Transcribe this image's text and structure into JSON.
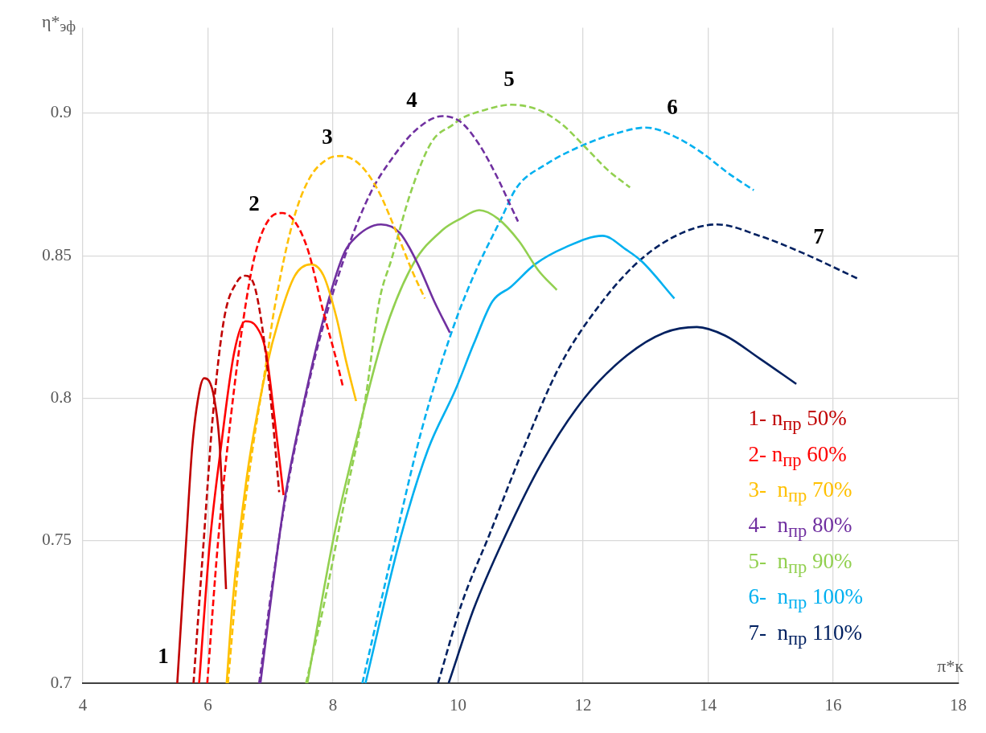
{
  "chart_data": {
    "type": "line",
    "ylabel": "η*$_{эф}$",
    "xlabel": "π*к",
    "xlim": [
      4,
      18
    ],
    "xticks": [
      4,
      6,
      8,
      10,
      12,
      14,
      16,
      18
    ],
    "ylim": [
      0.7,
      0.93
    ],
    "yticks": [
      0.7,
      0.75,
      0.8,
      0.85,
      0.9
    ],
    "grid": true,
    "legend": "bottom right",
    "series": [
      {
        "name": "1- n$_{пр}$ 50%",
        "color": "#c00000",
        "line_style": "solid",
        "x": [
          5.51,
          5.65,
          5.75,
          5.86,
          5.94,
          6.02,
          6.1,
          6.19,
          6.29
        ],
        "values": [
          0.7,
          0.749,
          0.783,
          0.802,
          0.807,
          0.806,
          0.8,
          0.783,
          0.733
        ]
      },
      {
        "color": "#c00000",
        "line_style": "dashed",
        "x": [
          5.77,
          5.93,
          6.08,
          6.26,
          6.47,
          6.6,
          6.75,
          6.9,
          7.03,
          7.14
        ],
        "values": [
          0.7,
          0.749,
          0.794,
          0.828,
          0.841,
          0.843,
          0.839,
          0.82,
          0.794,
          0.767
        ]
      },
      {
        "name": "2- n$_{пр}$ 60%",
        "color": "#ff0000",
        "line_style": "solid",
        "x": [
          5.86,
          6.03,
          6.21,
          6.42,
          6.6,
          6.78,
          6.93,
          7.06,
          7.21
        ],
        "values": [
          0.7,
          0.749,
          0.783,
          0.816,
          0.827,
          0.825,
          0.816,
          0.794,
          0.766
        ]
      },
      {
        "color": "#ff0000",
        "line_style": "dashed",
        "x": [
          5.99,
          6.16,
          6.37,
          6.57,
          6.75,
          7.03,
          7.19,
          7.39,
          7.6,
          7.85,
          8.06,
          8.16
        ],
        "values": [
          0.7,
          0.749,
          0.794,
          0.828,
          0.85,
          0.864,
          0.865,
          0.862,
          0.852,
          0.83,
          0.813,
          0.804
        ]
      },
      {
        "name": "3-  n$_{пр}$ 70%",
        "color": "#ffc000",
        "line_style": "solid",
        "x": [
          6.3,
          6.39,
          6.62,
          6.93,
          7.14,
          7.39,
          7.65,
          7.85,
          8.06,
          8.21,
          8.37
        ],
        "values": [
          0.7,
          0.727,
          0.772,
          0.81,
          0.828,
          0.843,
          0.847,
          0.843,
          0.828,
          0.813,
          0.799
        ]
      },
      {
        "color": "#ffc000",
        "line_style": "dashed",
        "x": [
          6.32,
          6.52,
          6.72,
          6.93,
          7.06,
          7.36,
          7.62,
          7.92,
          8.13,
          8.43,
          8.72,
          9.02,
          9.28,
          9.47
        ],
        "values": [
          0.7,
          0.749,
          0.783,
          0.812,
          0.831,
          0.862,
          0.877,
          0.884,
          0.885,
          0.882,
          0.873,
          0.858,
          0.844,
          0.835
        ]
      },
      {
        "name": "4-  n$_{пр}$ 80%",
        "color": "#7030a0",
        "line_style": "solid",
        "x": [
          6.84,
          7.03,
          7.24,
          7.49,
          7.85,
          8.16,
          8.3,
          8.77,
          9.07,
          9.36,
          9.62,
          9.87
        ],
        "values": [
          0.7,
          0.733,
          0.766,
          0.794,
          0.828,
          0.85,
          0.855,
          0.861,
          0.858,
          0.847,
          0.834,
          0.823
        ]
      },
      {
        "color": "#7030a0",
        "line_style": "dashed",
        "x": [
          6.82,
          7.02,
          7.25,
          7.5,
          7.79,
          8.21,
          8.6,
          8.94,
          9.32,
          9.75,
          10.04,
          10.34,
          10.64,
          10.81,
          10.96
        ],
        "values": [
          0.7,
          0.733,
          0.766,
          0.794,
          0.821,
          0.851,
          0.872,
          0.884,
          0.894,
          0.899,
          0.897,
          0.889,
          0.877,
          0.869,
          0.862
        ]
      },
      {
        "name": "5-  n$_{пр}$ 90%",
        "color": "#92d050",
        "line_style": "solid",
        "x": [
          7.59,
          8.01,
          8.37,
          8.81,
          9.28,
          9.75,
          10.04,
          10.34,
          10.64,
          10.98,
          11.28,
          11.58
        ],
        "values": [
          0.7,
          0.751,
          0.785,
          0.822,
          0.847,
          0.859,
          0.863,
          0.866,
          0.863,
          0.855,
          0.845,
          0.838
        ]
      },
      {
        "color": "#92d050",
        "line_style": "dashed",
        "x": [
          7.57,
          7.85,
          8.16,
          8.52,
          8.74,
          8.94,
          9.24,
          9.58,
          9.92,
          10.04,
          10.4,
          10.85,
          11.31,
          11.67,
          12.04,
          12.4,
          12.75
        ],
        "values": [
          0.7,
          0.727,
          0.761,
          0.8,
          0.834,
          0.849,
          0.872,
          0.89,
          0.896,
          0.898,
          0.901,
          0.903,
          0.901,
          0.896,
          0.888,
          0.88,
          0.874
        ]
      },
      {
        "name": "6-  n$_{пр}$ 100%",
        "color": "#00b0f0",
        "line_style": "solid",
        "x": [
          8.52,
          9.08,
          9.52,
          9.96,
          10.25,
          10.55,
          10.84,
          11.23,
          11.72,
          12.31,
          12.7,
          12.94,
          13.46
        ],
        "values": [
          0.7,
          0.751,
          0.782,
          0.803,
          0.819,
          0.834,
          0.839,
          0.847,
          0.853,
          0.857,
          0.852,
          0.848,
          0.835
        ]
      },
      {
        "color": "#00b0f0",
        "line_style": "dashed",
        "x": [
          8.47,
          8.93,
          9.42,
          9.91,
          10.25,
          10.69,
          10.94,
          11.4,
          12.02,
          12.54,
          13.0,
          13.45,
          13.91,
          14.32,
          14.73
        ],
        "values": [
          0.7,
          0.744,
          0.789,
          0.824,
          0.843,
          0.863,
          0.874,
          0.882,
          0.889,
          0.893,
          0.895,
          0.892,
          0.886,
          0.879,
          0.873
        ]
      },
      {
        "name": "7-  n$_{пр}$ 110%",
        "color": "#002060",
        "line_style": "solid",
        "x": [
          9.85,
          10.25,
          10.74,
          11.33,
          12.02,
          12.7,
          13.3,
          13.82,
          14.27,
          14.82,
          15.41
        ],
        "values": [
          0.7,
          0.726,
          0.751,
          0.777,
          0.8,
          0.815,
          0.823,
          0.825,
          0.822,
          0.814,
          0.805
        ]
      },
      {
        "color": "#002060",
        "line_style": "dashed",
        "x": [
          9.68,
          10.06,
          10.5,
          11.04,
          11.62,
          12.31,
          12.94,
          13.58,
          14.14,
          14.82,
          15.51,
          16.39
        ],
        "values": [
          0.7,
          0.728,
          0.752,
          0.782,
          0.811,
          0.834,
          0.849,
          0.858,
          0.861,
          0.857,
          0.851,
          0.842
        ]
      }
    ],
    "annotations": [
      "1",
      "2",
      "3",
      "4",
      "5",
      "6",
      "7"
    ]
  }
}
